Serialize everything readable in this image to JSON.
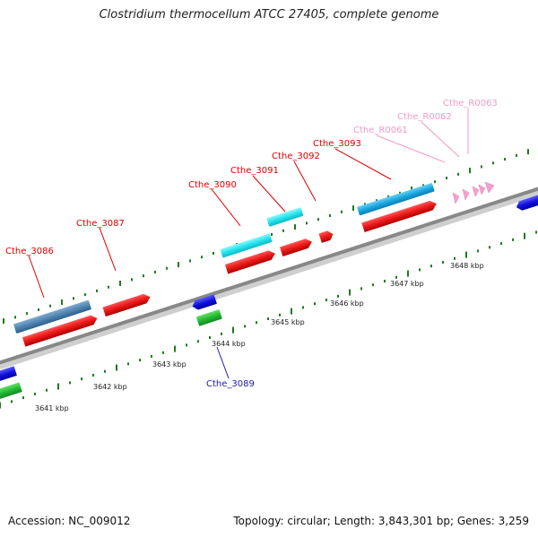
{
  "title": "Clostridium thermocellum ATCC 27405, complete genome",
  "footer": {
    "accession": "Accession: NC_009012",
    "summary": "Topology: circular; Length: 3,843,301 bp; Genes: 3,259"
  },
  "ruler_labels": [
    "3641 kbp",
    "3642 kbp",
    "3643 kbp",
    "3644 kbp",
    "3645 kbp",
    "3646 kbp",
    "3647 kbp",
    "3648 kbp"
  ],
  "gene_labels": [
    {
      "text": "Cthe_3086",
      "color": "#dd0000"
    },
    {
      "text": "Cthe_3087",
      "color": "#dd0000"
    },
    {
      "text": "Cthe_3090",
      "color": "#dd0000"
    },
    {
      "text": "Cthe_3091",
      "color": "#dd0000"
    },
    {
      "text": "Cthe_3092",
      "color": "#dd0000"
    },
    {
      "text": "Cthe_3093",
      "color": "#dd0000"
    },
    {
      "text": "Cthe_R0061",
      "color": "#f09ac6"
    },
    {
      "text": "Cthe_R0062",
      "color": "#f09ac6"
    },
    {
      "text": "Cthe_R0063",
      "color": "#f09ac6"
    },
    {
      "text": "Cthe_3089",
      "color": "#1a1ab0"
    }
  ],
  "colors": {
    "cds": "#ee1c1c",
    "cog_steelblue": "#4f86b3",
    "cog_cyan": "#22e5ee",
    "cog_skyblue": "#1aa8e2",
    "reverse_cds": "#1111dd",
    "reverse_cog": "#22bb33",
    "rrna": "#f5a0d0",
    "backbone": "#888888",
    "tick": "#1e7a1e"
  }
}
